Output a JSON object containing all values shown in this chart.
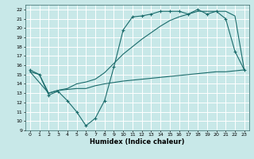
{
  "xlabel": "Humidex (Indice chaleur)",
  "bg_color": "#c8e8e8",
  "grid_color": "#ffffff",
  "line_color": "#1a6b6b",
  "xlim": [
    -0.5,
    23.5
  ],
  "ylim": [
    9,
    22.5
  ],
  "xticks": [
    0,
    1,
    2,
    3,
    4,
    5,
    6,
    7,
    8,
    9,
    10,
    11,
    12,
    13,
    14,
    15,
    16,
    17,
    18,
    19,
    20,
    21,
    22,
    23
  ],
  "yticks": [
    9,
    10,
    11,
    12,
    13,
    14,
    15,
    16,
    17,
    18,
    19,
    20,
    21,
    22
  ],
  "line1_x": [
    0,
    1,
    2,
    3,
    4,
    5,
    6,
    7,
    8,
    9,
    10,
    11,
    12,
    13,
    14,
    15,
    16,
    17,
    18,
    19,
    20,
    21,
    22,
    23
  ],
  "line1_y": [
    15.5,
    15.0,
    12.8,
    13.2,
    12.2,
    11.0,
    9.5,
    10.3,
    12.2,
    15.8,
    19.8,
    21.2,
    21.3,
    21.5,
    21.8,
    21.8,
    21.8,
    21.5,
    22.0,
    21.5,
    21.8,
    21.0,
    17.5,
    15.5
  ],
  "line2_x": [
    0,
    2,
    3,
    5,
    6,
    7,
    8,
    10,
    11,
    12,
    13,
    14,
    15,
    16,
    17,
    18,
    19,
    20,
    21,
    22,
    23
  ],
  "line2_y": [
    15.3,
    13.0,
    13.3,
    13.5,
    13.5,
    13.8,
    14.0,
    14.3,
    14.4,
    14.5,
    14.6,
    14.7,
    14.8,
    14.9,
    15.0,
    15.1,
    15.2,
    15.3,
    15.3,
    15.4,
    15.5
  ],
  "line3_x": [
    0,
    1,
    2,
    3,
    4,
    5,
    6,
    7,
    8,
    9,
    10,
    11,
    12,
    13,
    14,
    15,
    16,
    17,
    18,
    19,
    20,
    21,
    22,
    23
  ],
  "line3_y": [
    15.3,
    15.0,
    13.0,
    13.3,
    13.5,
    14.0,
    14.2,
    14.5,
    15.2,
    16.2,
    17.2,
    18.0,
    18.8,
    19.5,
    20.2,
    20.8,
    21.2,
    21.5,
    21.8,
    21.8,
    21.8,
    21.8,
    21.3,
    15.5
  ]
}
